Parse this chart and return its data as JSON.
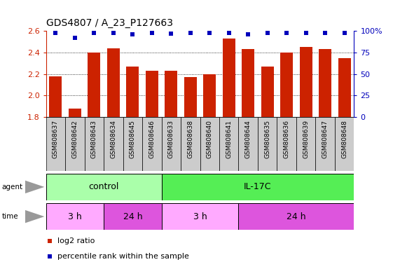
{
  "title": "GDS4807 / A_23_P127663",
  "samples": [
    "GSM808637",
    "GSM808642",
    "GSM808643",
    "GSM808634",
    "GSM808645",
    "GSM808646",
    "GSM808633",
    "GSM808638",
    "GSM808640",
    "GSM808641",
    "GSM808644",
    "GSM808635",
    "GSM808636",
    "GSM808639",
    "GSM808647",
    "GSM808648"
  ],
  "log2_values": [
    2.18,
    1.88,
    2.4,
    2.44,
    2.27,
    2.23,
    2.23,
    2.17,
    2.2,
    2.53,
    2.43,
    2.27,
    2.4,
    2.45,
    2.43,
    2.35
  ],
  "percentile_values": [
    98,
    92,
    98,
    98,
    96,
    98,
    97,
    98,
    98,
    98,
    96,
    98,
    98,
    98,
    98,
    98
  ],
  "bar_color": "#cc2200",
  "dot_color": "#0000bb",
  "ylim_left": [
    1.8,
    2.6
  ],
  "ylim_right": [
    0,
    100
  ],
  "yticks_left": [
    1.8,
    2.0,
    2.2,
    2.4,
    2.6
  ],
  "yticks_right": [
    0,
    25,
    50,
    75,
    100
  ],
  "grid_lines": [
    2.0,
    2.2,
    2.4
  ],
  "agent_groups": [
    {
      "label": "control",
      "start": 0,
      "end": 6,
      "color": "#aaffaa"
    },
    {
      "label": "IL-17C",
      "start": 6,
      "end": 16,
      "color": "#55ee55"
    }
  ],
  "time_groups": [
    {
      "label": "3 h",
      "start": 0,
      "end": 3,
      "color": "#ffaaff"
    },
    {
      "label": "24 h",
      "start": 3,
      "end": 6,
      "color": "#dd55dd"
    },
    {
      "label": "3 h",
      "start": 6,
      "end": 10,
      "color": "#ffaaff"
    },
    {
      "label": "24 h",
      "start": 10,
      "end": 16,
      "color": "#dd55dd"
    }
  ],
  "legend_items": [
    {
      "label": "log2 ratio",
      "color": "#cc2200"
    },
    {
      "label": "percentile rank within the sample",
      "color": "#0000bb"
    }
  ],
  "bar_width": 0.65,
  "bg_color": "#ffffff",
  "xtick_bg": "#cccccc",
  "left_tick_color": "#cc2200",
  "right_tick_color": "#0000bb",
  "label_row_color": "#888888"
}
